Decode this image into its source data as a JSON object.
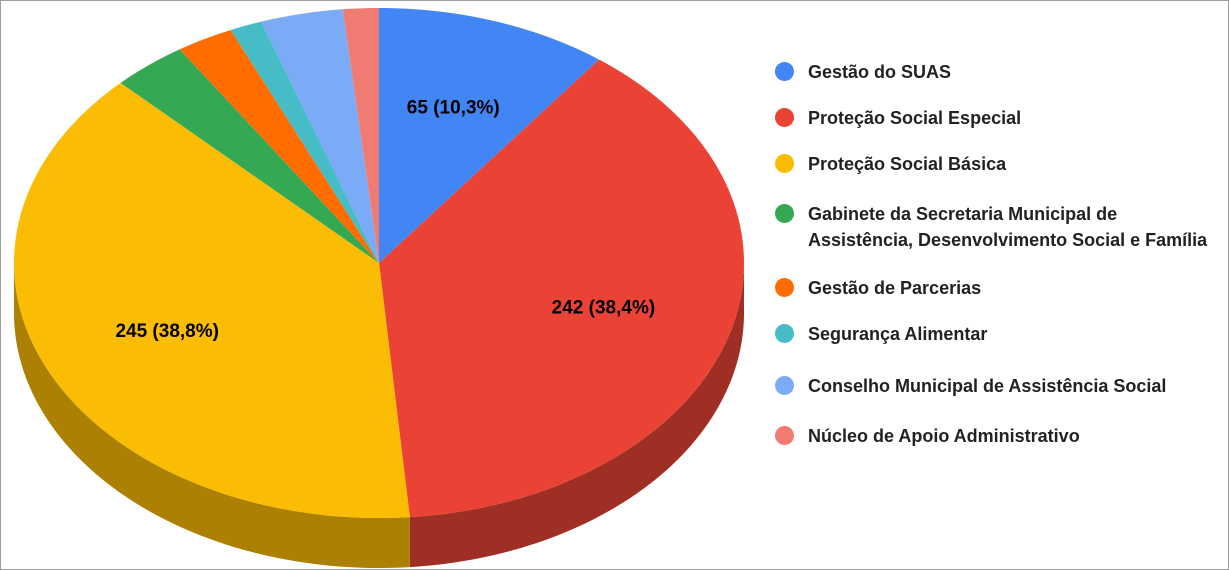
{
  "chart_data": {
    "type": "pie",
    "style": "3d",
    "categories": [
      "Gestão do SUAS",
      "Proteção Social Especial",
      "Proteção Social Básica",
      "Gabinete da Secretaria Municipal de Assistência, Desenvolvimento Social e Família",
      "Gestão de Parcerias",
      "Segurança Alimentar",
      "Conselho Municipal de Assistência Social",
      "Núcleo de Apoio Administrativo"
    ],
    "values": [
      65,
      242,
      245,
      21,
      16,
      9,
      23,
      10
    ],
    "value_labels": [
      "65 (10,3%)",
      "242 (38,4%)",
      "245 (38,8%)",
      null,
      null,
      null,
      null,
      null
    ],
    "colors": [
      "#4285f4",
      "#ea4335",
      "#fbbc04",
      "#34a853",
      "#ff6d01",
      "#46bdc6",
      "#7baaf7",
      "#f07b72"
    ],
    "legend": "right"
  }
}
